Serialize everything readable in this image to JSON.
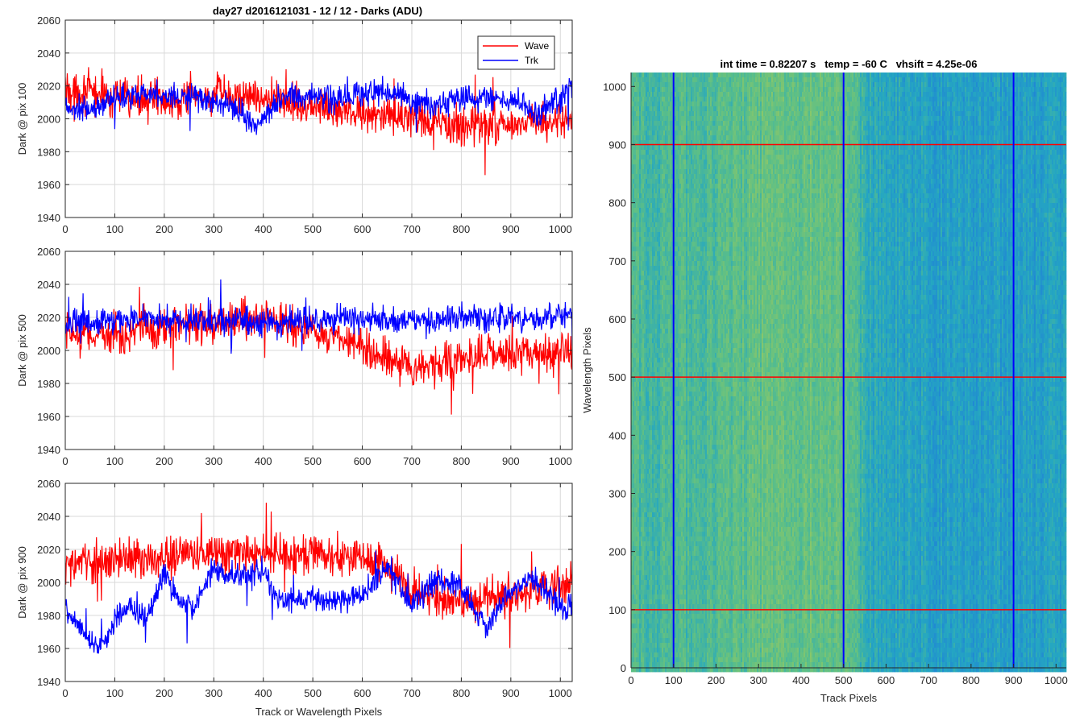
{
  "figure": {
    "left_title": "day27 d2016121031 - 12 / 12 - Darks (ADU)",
    "bottom_xlabel": "Track or Wavelength Pixels"
  },
  "colors": {
    "wave": "#ff0000",
    "trk": "#0000ff",
    "grid": "#d9d9d9",
    "axis": "#262626",
    "cut_row": "#ff0000",
    "cut_col": "#0000ff"
  },
  "chart_data": [
    {
      "type": "line",
      "name": "pix100",
      "ylabel": "Dark @ pix 100",
      "xlabel": "",
      "xlim": [
        0,
        1024
      ],
      "ylim": [
        1940,
        2060
      ],
      "xticks": [
        0,
        100,
        200,
        300,
        400,
        500,
        600,
        700,
        800,
        900,
        1000
      ],
      "yticks": [
        1940,
        1960,
        1980,
        2000,
        2020,
        2040,
        2060
      ],
      "grid": true,
      "legend": {
        "placement": "top-right",
        "entries": [
          "Wave",
          "Trk"
        ]
      },
      "series": [
        {
          "name": "Wave",
          "color": "#ff0000",
          "x": [
            0,
            50,
            100,
            150,
            200,
            250,
            300,
            350,
            400,
            450,
            500,
            550,
            600,
            650,
            700,
            750,
            800,
            850,
            900,
            950,
            1024
          ],
          "values": [
            2018,
            2016,
            2013,
            2012,
            2012,
            2013,
            2014,
            2014,
            2013,
            2011,
            2008,
            2006,
            2004,
            2001,
            1999,
            1996,
            1996,
            1997,
            1997,
            1998,
            1999
          ]
        },
        {
          "name": "Trk",
          "color": "#0000ff",
          "x": [
            0,
            50,
            100,
            150,
            200,
            250,
            300,
            350,
            380,
            420,
            450,
            500,
            550,
            600,
            650,
            700,
            750,
            800,
            850,
            900,
            950,
            1024
          ],
          "values": [
            2006,
            2005,
            2012,
            2016,
            2014,
            2013,
            2011,
            2006,
            1994,
            2008,
            2015,
            2014,
            2011,
            2015,
            2017,
            2011,
            2009,
            2013,
            2012,
            2012,
            2003,
            2018
          ]
        }
      ]
    },
    {
      "type": "line",
      "name": "pix500",
      "ylabel": "Dark @ pix 500",
      "xlabel": "",
      "xlim": [
        0,
        1024
      ],
      "ylim": [
        1940,
        2060
      ],
      "xticks": [
        0,
        100,
        200,
        300,
        400,
        500,
        600,
        700,
        800,
        900,
        1000
      ],
      "yticks": [
        1940,
        1960,
        1980,
        2000,
        2020,
        2040,
        2060
      ],
      "grid": true,
      "series": [
        {
          "name": "Wave",
          "color": "#ff0000",
          "x": [
            0,
            50,
            100,
            150,
            200,
            250,
            300,
            350,
            400,
            450,
            500,
            550,
            600,
            650,
            700,
            750,
            800,
            850,
            900,
            950,
            1024
          ],
          "values": [
            2010,
            2009,
            2010,
            2013,
            2015,
            2016,
            2016,
            2018,
            2018,
            2016,
            2011,
            2007,
            2002,
            1996,
            1990,
            1990,
            1995,
            1997,
            1997,
            1999,
            1999
          ]
        },
        {
          "name": "Trk",
          "color": "#0000ff",
          "x": [
            0,
            50,
            100,
            150,
            200,
            250,
            300,
            350,
            400,
            450,
            500,
            550,
            600,
            650,
            700,
            750,
            800,
            850,
            900,
            950,
            1024
          ],
          "values": [
            2016,
            2017,
            2018,
            2019,
            2018,
            2018,
            2018,
            2018,
            2017,
            2018,
            2018,
            2019,
            2018,
            2017,
            2018,
            2016,
            2021,
            2019,
            2021,
            2019,
            2021
          ]
        }
      ]
    },
    {
      "type": "line",
      "name": "pix900",
      "ylabel": "Dark @ pix 900",
      "xlabel": "Track or Wavelength Pixels",
      "xlim": [
        0,
        1024
      ],
      "ylim": [
        1940,
        2060
      ],
      "xticks": [
        0,
        100,
        200,
        300,
        400,
        500,
        600,
        700,
        800,
        900,
        1000
      ],
      "yticks": [
        1940,
        1960,
        1980,
        2000,
        2020,
        2040,
        2060
      ],
      "grid": true,
      "series": [
        {
          "name": "Wave",
          "color": "#ff0000",
          "x": [
            0,
            50,
            100,
            150,
            200,
            250,
            300,
            350,
            400,
            450,
            500,
            550,
            600,
            650,
            700,
            750,
            800,
            850,
            900,
            950,
            1024
          ],
          "values": [
            2010,
            2012,
            2013,
            2014,
            2016,
            2018,
            2017,
            2018,
            2018,
            2017,
            2017,
            2016,
            2015,
            2010,
            1995,
            1990,
            1988,
            1990,
            1992,
            1996,
            1999
          ]
        },
        {
          "name": "Trk",
          "color": "#0000ff",
          "x": [
            0,
            20,
            50,
            80,
            100,
            130,
            160,
            200,
            230,
            260,
            300,
            350,
            400,
            430,
            480,
            550,
            600,
            650,
            700,
            750,
            800,
            850,
            900,
            950,
            1000,
            1024
          ],
          "values": [
            1985,
            1975,
            1965,
            1962,
            1978,
            1988,
            1975,
            2006,
            1988,
            1985,
            2008,
            2002,
            2008,
            1990,
            1990,
            1988,
            1992,
            2010,
            1987,
            2002,
            1998,
            1972,
            1995,
            2003,
            1983,
            1985
          ]
        }
      ]
    },
    {
      "type": "heatmap",
      "name": "image",
      "title": "int time = 0.82207 s   temp = -60 C   vhsift = 4.25e-06",
      "xlabel": "Track Pixels",
      "ylabel": "Wavelength Pixels",
      "xlim": [
        0,
        1024
      ],
      "ylim": [
        0,
        1024
      ],
      "xticks": [
        0,
        100,
        200,
        300,
        400,
        500,
        600,
        700,
        800,
        900,
        1000
      ],
      "yticks": [
        0,
        100,
        200,
        300,
        400,
        500,
        600,
        700,
        800,
        900,
        1000
      ],
      "colormap": [
        "#1f84d6",
        "#25a7c1",
        "#5cbf87",
        "#9cca5e"
      ],
      "column_profile": {
        "x": [
          0,
          100,
          200,
          300,
          400,
          450,
          500,
          530,
          560,
          600,
          700,
          800,
          900,
          1024
        ],
        "level": [
          0.55,
          0.55,
          0.62,
          0.7,
          0.72,
          0.72,
          0.7,
          0.55,
          0.38,
          0.32,
          0.28,
          0.25,
          0.24,
          0.26
        ]
      },
      "cut_rows": [
        100,
        500,
        900
      ],
      "cut_cols": [
        100,
        500,
        900
      ]
    }
  ]
}
